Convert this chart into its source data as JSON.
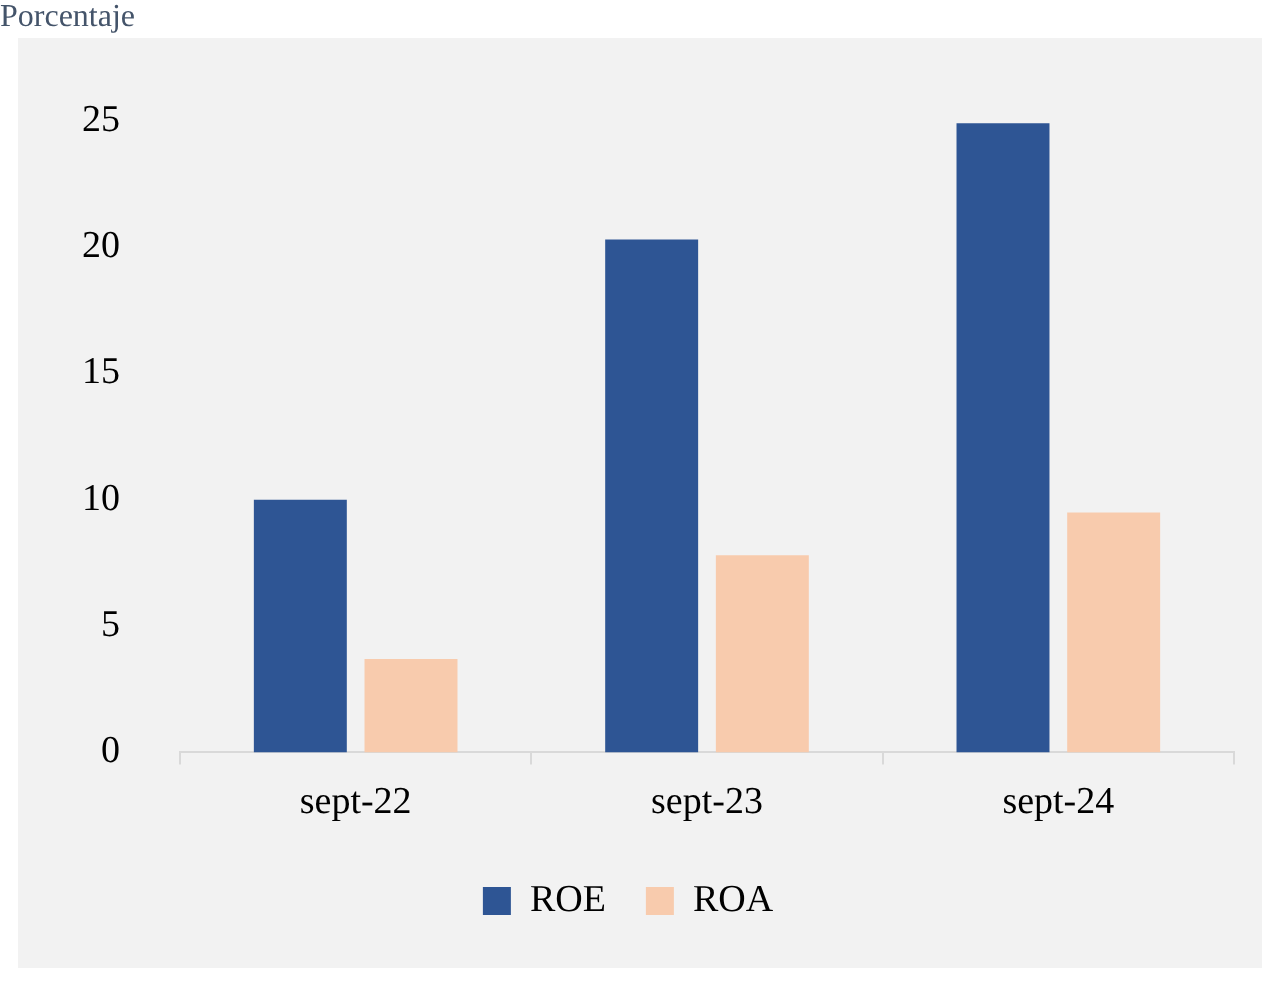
{
  "chart_data": {
    "type": "bar",
    "ylabel": "Porcentaje",
    "categories": [
      "sept-22",
      "sept-23",
      "sept-24"
    ],
    "series": [
      {
        "name": "ROE",
        "color": "#2e5594",
        "values": [
          10.0,
          20.3,
          24.9
        ]
      },
      {
        "name": "ROA",
        "color": "#f8cbad",
        "values": [
          3.7,
          7.8,
          9.5
        ]
      }
    ],
    "ylim": [
      0,
      25
    ],
    "yticks": [
      0,
      5,
      10,
      15,
      20,
      25
    ],
    "grid": false,
    "legend": "bottom"
  }
}
